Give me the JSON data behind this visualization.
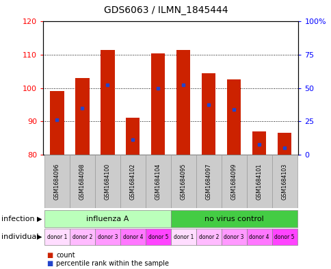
{
  "title": "GDS6063 / ILMN_1845444",
  "samples": [
    "GSM1684096",
    "GSM1684098",
    "GSM1684100",
    "GSM1684102",
    "GSM1684104",
    "GSM1684095",
    "GSM1684097",
    "GSM1684099",
    "GSM1684101",
    "GSM1684103"
  ],
  "bar_tops": [
    99,
    103,
    111.5,
    91,
    110.5,
    111.5,
    104.5,
    102.5,
    87,
    86.5
  ],
  "bar_bottom": 80,
  "blue_marker_y": [
    90.5,
    94,
    101,
    84.5,
    100,
    101,
    95,
    93.5,
    83,
    82
  ],
  "ylim": [
    80,
    120
  ],
  "yticks_left": [
    80,
    90,
    100,
    110,
    120
  ],
  "ytick_right_labels": [
    "0",
    "25",
    "50",
    "75",
    "100%"
  ],
  "bar_color": "#cc2200",
  "blue_color": "#2244cc",
  "infection_groups": [
    {
      "label": "influenza A",
      "start": 0,
      "end": 5,
      "color": "#bbffbb"
    },
    {
      "label": "no virus control",
      "start": 5,
      "end": 10,
      "color": "#44cc44"
    }
  ],
  "donor_labels": [
    "donor 1",
    "donor 2",
    "donor 3",
    "donor 4",
    "donor 5",
    "donor 1",
    "donor 2",
    "donor 3",
    "donor 4",
    "donor 5"
  ],
  "donor_colors": [
    "#ffddff",
    "#ffbbff",
    "#ff99ff",
    "#ff77ff",
    "#ff44ff",
    "#ffddff",
    "#ffbbff",
    "#ff99ff",
    "#ff77ff",
    "#ff44ff"
  ],
  "infection_label": "infection",
  "individual_label": "individual",
  "legend_count_label": "count",
  "legend_pct_label": "percentile rank within the sample",
  "background_color": "#ffffff",
  "tick_bg_color": "#cccccc",
  "bar_width": 0.55
}
